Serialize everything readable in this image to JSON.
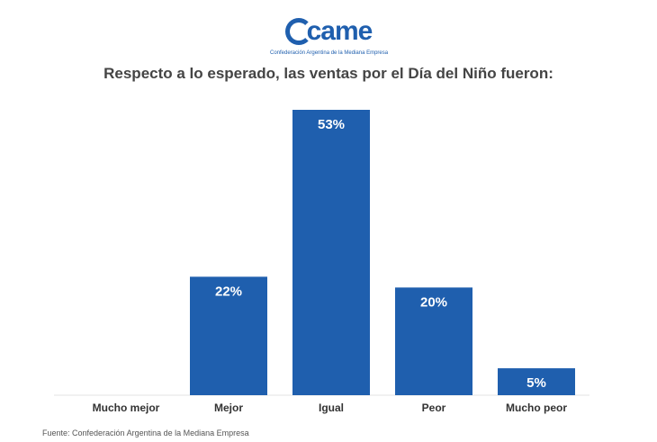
{
  "logo": {
    "wordmark": "came",
    "caption": "Confederación Argentina de la Mediana Empresa"
  },
  "chart_data": {
    "type": "bar",
    "title": "Respecto a lo esperado, las ventas por el Día del Niño fueron:",
    "categories": [
      "Mucho mejor",
      "Mejor",
      "Igual",
      "Peor",
      "Mucho peor"
    ],
    "values": [
      0,
      22,
      53,
      20,
      5
    ],
    "data_labels": [
      "",
      "22%",
      "53%",
      "20%",
      "5%"
    ],
    "ylim": [
      0,
      53
    ],
    "grid": false,
    "legend": "none",
    "bar_color": "#1f5fae",
    "label_color": "#ffffff"
  },
  "source": "Fuente: Confederación Argentina de la Mediana Empresa"
}
